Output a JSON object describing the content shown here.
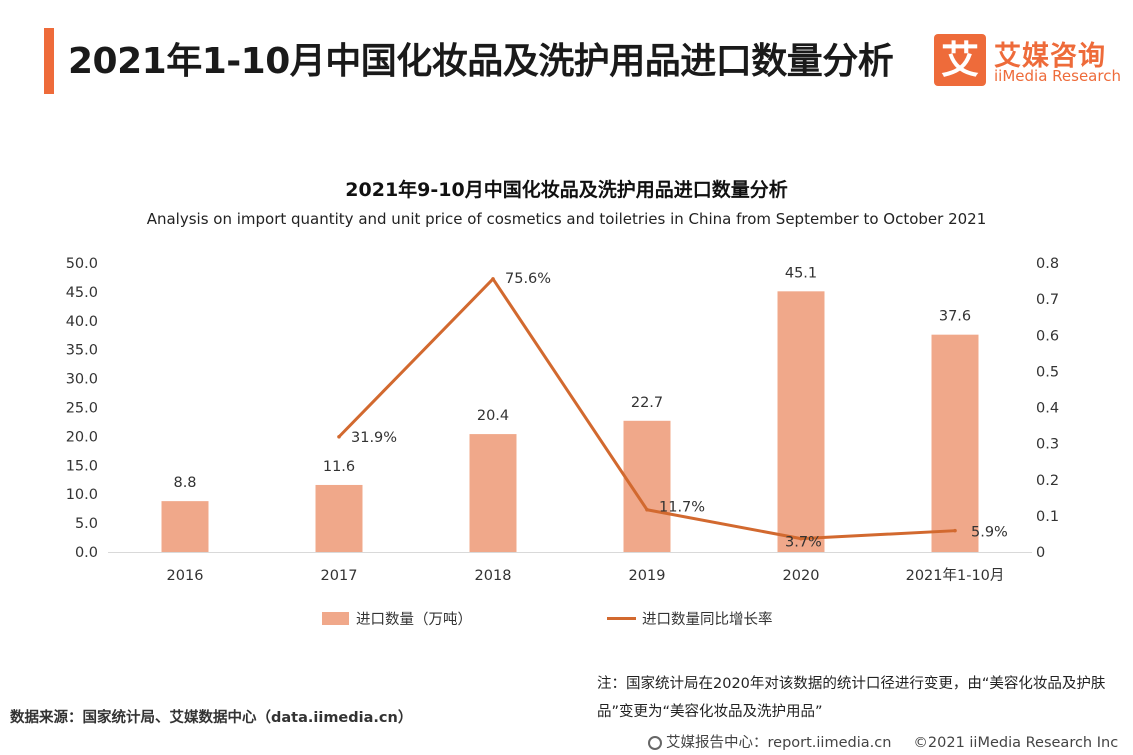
{
  "header": {
    "title": "2021年1-10月中国化妆品及洗护用品进口数量分析"
  },
  "logo": {
    "glyph": "艾",
    "name_cn": "艾媒咨询",
    "name_en": "iiMedia Research"
  },
  "colors": {
    "accent": "#ee6b3a",
    "bar": "#f0a88a",
    "line": "#d2692f"
  },
  "chart_data": {
    "type": "bar",
    "title": "2021年9-10月中国化妆品及洗护用品进口数量分析",
    "subtitle": "Analysis on import quantity and unit price of cosmetics and toiletries in China from September to October 2021",
    "categories": [
      "2016",
      "2017",
      "2018",
      "2019",
      "2020",
      "2021年1-10月"
    ],
    "series": [
      {
        "name": "进口数量（万吨）",
        "type": "bar",
        "axis": "left",
        "values": [
          8.8,
          11.6,
          20.4,
          22.7,
          45.1,
          37.6
        ],
        "labels": [
          "8.8",
          "11.6",
          "20.4",
          "22.7",
          "45.1",
          "37.6"
        ]
      },
      {
        "name": "进口数量同比增长率",
        "type": "line",
        "axis": "right",
        "values": [
          null,
          0.319,
          0.756,
          0.117,
          0.037,
          0.059
        ],
        "labels": [
          "",
          "31.9%",
          "75.6%",
          "11.7%",
          "3.7%",
          "5.9%"
        ]
      }
    ],
    "y_left": {
      "ylim": [
        0,
        50
      ],
      "ticks": [
        "0.0",
        "5.0",
        "10.0",
        "15.0",
        "20.0",
        "25.0",
        "30.0",
        "35.0",
        "40.0",
        "45.0",
        "50.0"
      ]
    },
    "y_right": {
      "ylim": [
        0,
        0.8
      ],
      "ticks": [
        "0",
        "0.1",
        "0.2",
        "0.3",
        "0.4",
        "0.5",
        "0.6",
        "0.7",
        "0.8"
      ]
    },
    "legend_position": "bottom",
    "grid": false
  },
  "note": {
    "text": "注：国家统计局在2020年对该数据的统计口径进行变更，由“美容化妆品及护肤品”变更为“美容化妆品及洗护用品”"
  },
  "footer": {
    "source": "数据来源：国家统计局、艾媒数据中心（data.iimedia.cn）",
    "report": "艾媒报告中心：report.iimedia.cn",
    "copyright": "©2021  iiMedia Research  Inc"
  }
}
